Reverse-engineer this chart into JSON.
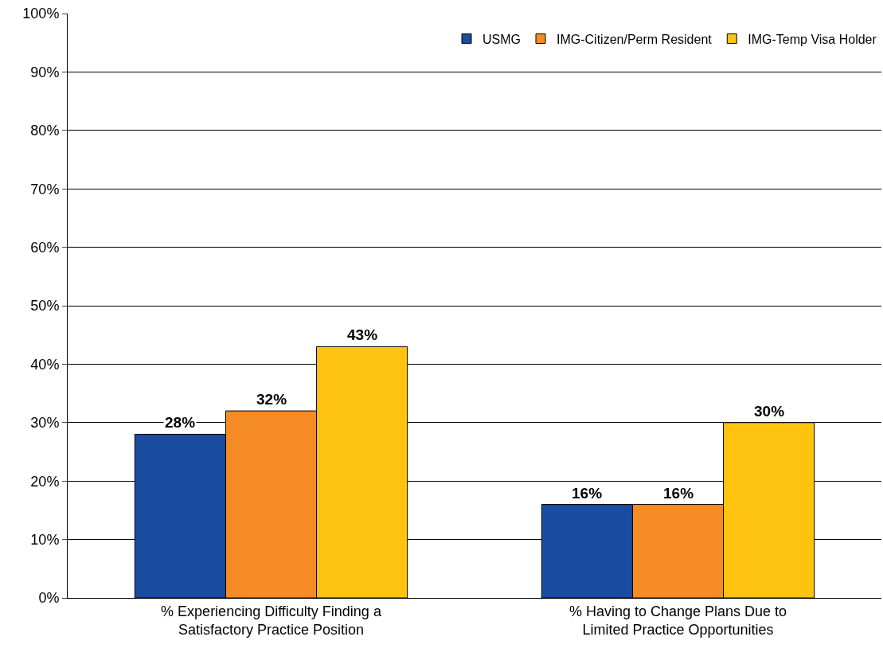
{
  "chart_data": {
    "type": "bar",
    "categories": [
      "% Experiencing Difficulty Finding a Satisfactory Practice Position",
      "% Having to Change Plans Due to Limited Practice Opportunities"
    ],
    "series": [
      {
        "name": "USMG",
        "color": "#1a4ca1",
        "values": [
          28,
          16
        ],
        "value_labels": [
          "28%",
          "16%"
        ]
      },
      {
        "name": "IMG-Citizen/Perm Resident",
        "color": "#f58b25",
        "values": [
          32,
          16
        ],
        "value_labels": [
          "32%",
          "16%"
        ]
      },
      {
        "name": "IMG-Temp Visa Holder",
        "color": "#fdc30f",
        "values": [
          43,
          30
        ],
        "value_labels": [
          "43%",
          "30%"
        ]
      }
    ],
    "ylim": [
      0,
      100
    ],
    "yticks": [
      {
        "value": 0,
        "label": "0%"
      },
      {
        "value": 10,
        "label": "10%"
      },
      {
        "value": 20,
        "label": "20%"
      },
      {
        "value": 30,
        "label": "30%"
      },
      {
        "value": 40,
        "label": "40%"
      },
      {
        "value": 50,
        "label": "50%"
      },
      {
        "value": 60,
        "label": "60%"
      },
      {
        "value": 70,
        "label": "70%"
      },
      {
        "value": 80,
        "label": "80%"
      },
      {
        "value": 90,
        "label": "90%"
      },
      {
        "value": 100,
        "label": "100%"
      }
    ],
    "grid": "y",
    "legend": "top right"
  }
}
